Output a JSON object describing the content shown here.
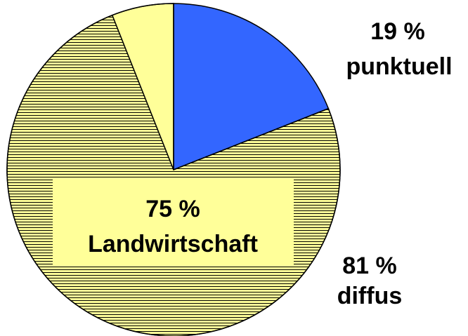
{
  "chart_data": {
    "type": "pie",
    "categories": [
      "punktuell",
      "Landwirtschaft",
      null
    ],
    "values": [
      19,
      75,
      6
    ],
    "value_labels": [
      "19 %",
      "75 %",
      null
    ],
    "colors": [
      "#3366ff",
      "#ffff99",
      "#ffff99"
    ],
    "hatched": [
      false,
      true,
      false
    ],
    "groups": [
      {
        "label": "diffus",
        "value": 81,
        "value_label": "81 %"
      }
    ]
  }
}
